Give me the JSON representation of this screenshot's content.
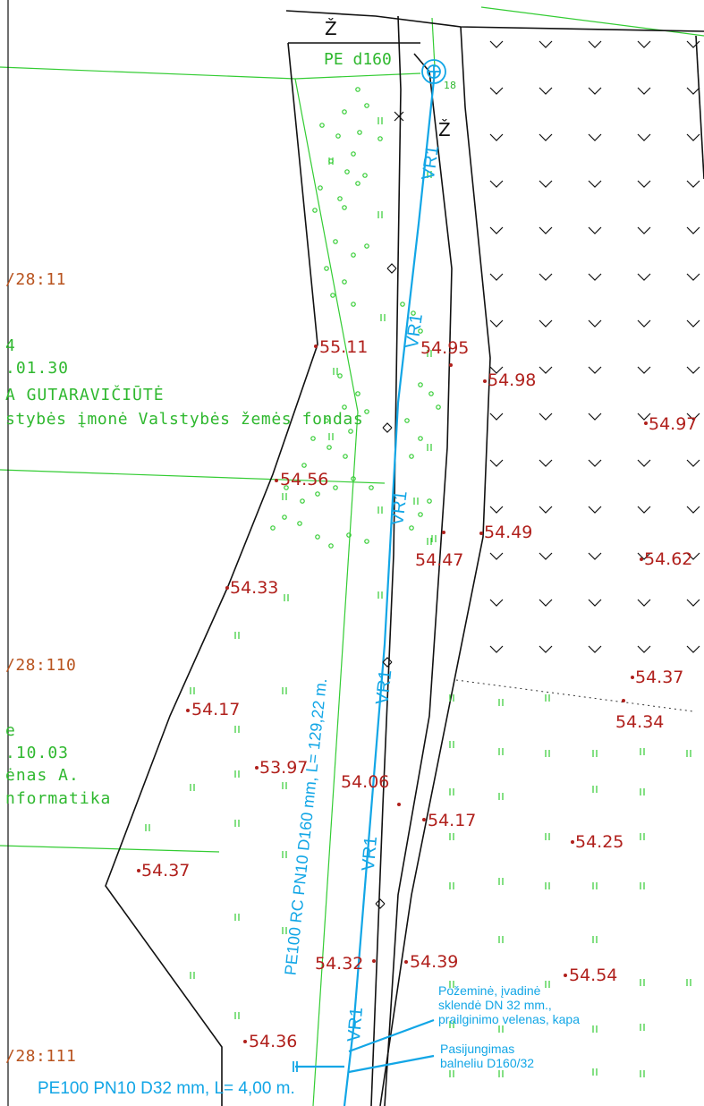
{
  "colors": {
    "boundary": "#111111",
    "parcel_line": "#33cc33",
    "vegetation": "#33cc33",
    "pipeline": "#12a6e6",
    "elevation": "#b0201c",
    "parcel_id": "#b8531e"
  },
  "symbols": {
    "well_number": "18",
    "north_labels": [
      "Ž",
      "Ž"
    ],
    "pe_label": "PE d160"
  },
  "parcels": {
    "top": "/28:11",
    "middle": "/28:110",
    "bottom": "/28:111"
  },
  "owners": {
    "top": [
      "4",
      ".01.30",
      "A GUTARAVIČIŪTĖ",
      "stybės įmonė Valstybės žemės fondas"
    ],
    "middle": [
      "e",
      ".10.03",
      "ėnas A.",
      "nformatika"
    ]
  },
  "elevations": [
    {
      "id": "e1",
      "value": "55.11"
    },
    {
      "id": "e2",
      "value": "54.95"
    },
    {
      "id": "e3",
      "value": "54.98"
    },
    {
      "id": "e4",
      "value": "54.97"
    },
    {
      "id": "e5",
      "value": "54.56"
    },
    {
      "id": "e6",
      "value": "54.49"
    },
    {
      "id": "e7",
      "value": "54.47"
    },
    {
      "id": "e8",
      "value": "54.62"
    },
    {
      "id": "e9",
      "value": "54.33"
    },
    {
      "id": "e10",
      "value": "54.37"
    },
    {
      "id": "e11",
      "value": "54.34"
    },
    {
      "id": "e12",
      "value": "54.17"
    },
    {
      "id": "e13",
      "value": "53.97"
    },
    {
      "id": "e14",
      "value": "54.06"
    },
    {
      "id": "e15",
      "value": "54.17"
    },
    {
      "id": "e16",
      "value": "54.25"
    },
    {
      "id": "e17",
      "value": "54.37"
    },
    {
      "id": "e18",
      "value": "54.32"
    },
    {
      "id": "e19",
      "value": "54.39"
    },
    {
      "id": "e20",
      "value": "54.54"
    },
    {
      "id": "e21",
      "value": "54.36"
    }
  ],
  "pipeline": {
    "code": "VR1",
    "main_label": "PE100 RC PN10 D160 mm, L= 129,22 m.",
    "branch_label": "PE100 PN10 D32 mm, L= 4,00 m.",
    "valve_note": [
      "Požeminė, įvadinė",
      "sklendė DN 32 mm.,",
      "prailginimo velenas, kapa"
    ],
    "tap_note": [
      "Pasijungimas",
      "balneliu D160/32"
    ]
  }
}
